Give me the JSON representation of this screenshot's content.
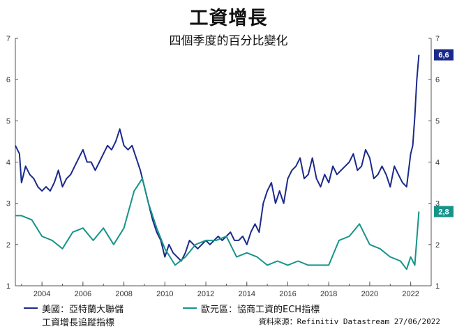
{
  "header": {
    "title": "工資增長",
    "subtitle": "四個季度的百分比變化"
  },
  "legend": {
    "us_line1": "美國：亞特蘭大聯儲",
    "us_line2": "工資增長追蹤指標",
    "ez": "歐元區：協商工資的ECH指標"
  },
  "source": "資料來源：Refinitiv Datastream 27/06/2022",
  "colors": {
    "us": "#1b2a8a",
    "ez": "#17948a",
    "axis": "#555555"
  },
  "chart_data": {
    "type": "line",
    "title": "工資增長",
    "subtitle": "四個季度的百分比變化",
    "xlabel": "",
    "ylabel": "",
    "xlim": [
      2002.7,
      2023.0
    ],
    "ylim": [
      1,
      7
    ],
    "yticks": [
      1,
      2,
      3,
      4,
      5,
      6,
      7
    ],
    "xticks": [
      2004,
      2006,
      2008,
      2010,
      2012,
      2014,
      2016,
      2018,
      2020,
      2022
    ],
    "grid": false,
    "series": [
      {
        "name": "美國：亞特蘭大聯儲 工資增長追蹤指標",
        "end_label": "6,6",
        "x": [
          2002.7,
          2002.9,
          2003.0,
          2003.2,
          2003.4,
          2003.6,
          2003.8,
          2004.0,
          2004.2,
          2004.4,
          2004.6,
          2004.8,
          2005.0,
          2005.2,
          2005.4,
          2005.6,
          2005.8,
          2006.0,
          2006.2,
          2006.4,
          2006.6,
          2006.8,
          2007.0,
          2007.2,
          2007.4,
          2007.6,
          2007.8,
          2008.0,
          2008.2,
          2008.4,
          2008.6,
          2008.8,
          2009.0,
          2009.2,
          2009.4,
          2009.6,
          2009.8,
          2010.0,
          2010.2,
          2010.4,
          2010.6,
          2010.8,
          2011.0,
          2011.2,
          2011.4,
          2011.6,
          2011.8,
          2012.0,
          2012.2,
          2012.4,
          2012.6,
          2012.8,
          2013.0,
          2013.2,
          2013.4,
          2013.6,
          2013.8,
          2014.0,
          2014.2,
          2014.4,
          2014.6,
          2014.8,
          2015.0,
          2015.2,
          2015.4,
          2015.6,
          2015.8,
          2016.0,
          2016.2,
          2016.4,
          2016.6,
          2016.8,
          2017.0,
          2017.2,
          2017.4,
          2017.6,
          2017.8,
          2018.0,
          2018.2,
          2018.4,
          2018.6,
          2018.8,
          2019.0,
          2019.2,
          2019.4,
          2019.6,
          2019.8,
          2020.0,
          2020.2,
          2020.4,
          2020.6,
          2020.8,
          2021.0,
          2021.2,
          2021.4,
          2021.6,
          2021.8,
          2022.0,
          2022.1,
          2022.2,
          2022.3,
          2022.4
        ],
        "values": [
          4.4,
          4.2,
          3.5,
          3.9,
          3.7,
          3.6,
          3.4,
          3.3,
          3.4,
          3.3,
          3.5,
          3.8,
          3.4,
          3.6,
          3.7,
          3.9,
          4.1,
          4.3,
          4.0,
          4.0,
          3.8,
          4.0,
          4.2,
          4.4,
          4.3,
          4.5,
          4.8,
          4.4,
          4.3,
          4.4,
          4.1,
          3.8,
          3.4,
          3.0,
          2.6,
          2.3,
          2.1,
          1.7,
          2.0,
          1.8,
          1.7,
          1.6,
          1.8,
          2.1,
          2.0,
          1.9,
          2.0,
          2.1,
          2.0,
          2.1,
          2.2,
          2.1,
          2.2,
          2.3,
          2.1,
          2.1,
          2.2,
          2.0,
          2.3,
          2.5,
          2.3,
          3.0,
          3.3,
          3.5,
          3.0,
          3.3,
          3.0,
          3.6,
          3.8,
          3.9,
          4.1,
          3.6,
          3.7,
          4.1,
          3.6,
          3.4,
          3.7,
          3.5,
          3.9,
          3.7,
          3.8,
          3.9,
          4.0,
          4.2,
          3.8,
          3.9,
          4.3,
          4.1,
          3.6,
          3.7,
          3.9,
          3.7,
          3.4,
          3.9,
          3.7,
          3.5,
          3.4,
          4.2,
          4.4,
          5.1,
          6.0,
          6.6
        ],
        "color": "#1b2a8a"
      },
      {
        "name": "歐元區：協商工資的ECH指標",
        "end_label": "2,8",
        "x": [
          2002.7,
          2003.0,
          2003.5,
          2004.0,
          2004.5,
          2005.0,
          2005.5,
          2006.0,
          2006.5,
          2007.0,
          2007.5,
          2008.0,
          2008.5,
          2008.9,
          2009.2,
          2009.6,
          2010.0,
          2010.5,
          2011.0,
          2011.5,
          2012.0,
          2012.5,
          2013.0,
          2013.5,
          2014.0,
          2014.5,
          2015.0,
          2015.5,
          2016.0,
          2016.5,
          2017.0,
          2017.5,
          2018.0,
          2018.5,
          2019.0,
          2019.5,
          2020.0,
          2020.5,
          2021.0,
          2021.5,
          2021.8,
          2022.0,
          2022.2,
          2022.4
        ],
        "values": [
          2.7,
          2.7,
          2.6,
          2.2,
          2.1,
          1.9,
          2.3,
          2.4,
          2.1,
          2.4,
          2.0,
          2.4,
          3.3,
          3.6,
          3.0,
          2.4,
          1.9,
          1.5,
          1.7,
          2.0,
          2.1,
          2.1,
          2.2,
          1.7,
          1.8,
          1.7,
          1.5,
          1.6,
          1.5,
          1.6,
          1.5,
          1.5,
          1.5,
          2.1,
          2.2,
          2.5,
          2.0,
          1.9,
          1.7,
          1.6,
          1.4,
          1.7,
          1.5,
          2.8
        ],
        "color": "#17948a"
      }
    ]
  }
}
